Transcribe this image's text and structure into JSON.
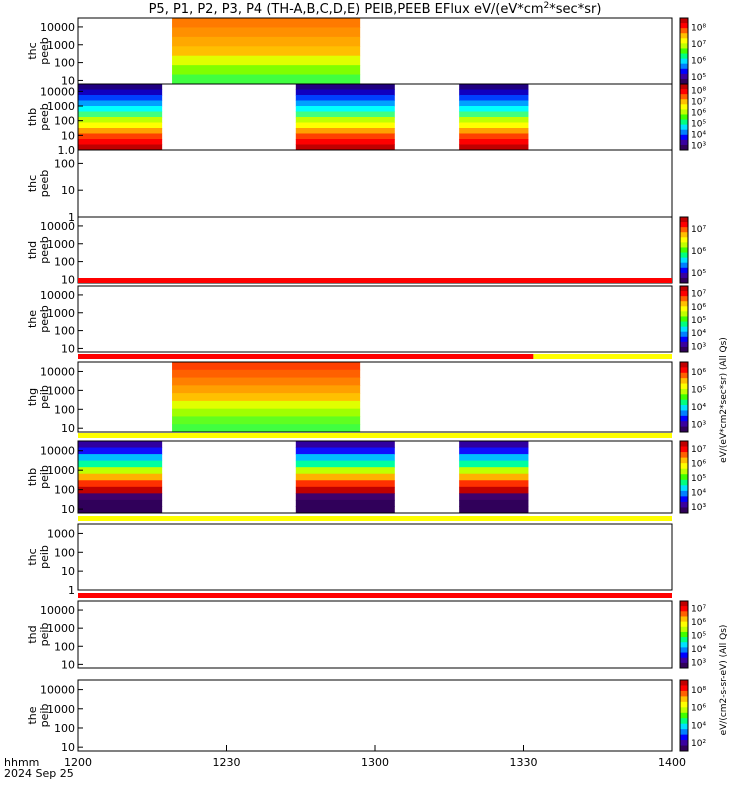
{
  "title": "P5, P1, P2, P3, P4 (TH-A,B,C,D,E) PEIB,PEEB EFlux eV/(eV*cm",
  "title_sup": "2",
  "title_tail": "*sec*sr)",
  "time_axis": {
    "label_line1": "hhmm",
    "label_line2": "2024 Sep 25",
    "ticks": [
      "1200",
      "1230",
      "1300",
      "1330",
      "1400"
    ],
    "tick_minutes": [
      0,
      30,
      60,
      90,
      120
    ]
  },
  "colorbar_units_electron": "eV/(eV*cm2*sec*sr) (All Qs)",
  "colorbar_units_ion": "eV/(cm2-s-sr-eV) (All Qs)",
  "chart_data": {
    "type": "heatmap",
    "x_range_minutes": [
      0,
      120
    ],
    "panels": [
      {
        "ylabel": [
          "thc",
          "peeb"
        ],
        "yticks": [
          "10",
          "100",
          "1000",
          "10000"
        ],
        "ylog": [
          0.8,
          4.5
        ],
        "intervals": [
          [
            19,
            57
          ]
        ],
        "colormap": "orange",
        "cbar": [
          "10⁵",
          "10⁶",
          "10⁷",
          "10⁸"
        ],
        "cbar_exp": [
          "5",
          "6",
          "7",
          "8"
        ],
        "flags": []
      },
      {
        "ylabel": [
          "thb",
          "peeb"
        ],
        "yticks": [
          "1.0",
          "10",
          "100",
          "1000",
          "10000"
        ],
        "ylog": [
          0,
          4.5
        ],
        "intervals": [
          [
            0,
            17
          ],
          [
            44,
            64
          ],
          [
            77,
            91
          ]
        ],
        "colormap": "electron",
        "cbar": [
          "10³",
          "10⁴",
          "10⁵",
          "10⁶",
          "10⁷",
          "10⁸"
        ],
        "cbar_exp": [
          "3",
          "4",
          "5",
          "6",
          "7",
          "8"
        ],
        "flags": []
      },
      {
        "ylabel": [
          "thc",
          "peeb"
        ],
        "yticks": [
          "1",
          "10",
          "100"
        ],
        "ylog": [
          0,
          2.5
        ],
        "intervals": [],
        "colormap": "none",
        "cbar": [],
        "cbar_exp": [],
        "flags": []
      },
      {
        "ylabel": [
          "thd",
          "peeb"
        ],
        "yticks": [
          "10",
          "100",
          "1000",
          "10000"
        ],
        "ylog": [
          0.8,
          4.5
        ],
        "intervals": [],
        "colormap": "none",
        "cbar": [
          "10⁵",
          "10⁶",
          "10⁷"
        ],
        "cbar_exp": [
          "5",
          "6",
          "7"
        ],
        "flags": []
      },
      {
        "ylabel": [
          "the",
          "peeb"
        ],
        "yticks": [
          "10",
          "100",
          "1000",
          "10000"
        ],
        "ylog": [
          0.8,
          4.5
        ],
        "intervals": [],
        "colormap": "none",
        "cbar": [
          "10³",
          "10⁴",
          "10⁵",
          "10⁶",
          "10⁷"
        ],
        "cbar_exp": [
          "3",
          "4",
          "5",
          "6",
          "7"
        ],
        "flags": [
          {
            "color": "#ff0000",
            "from": 0,
            "to": 120
          }
        ]
      },
      {
        "ylabel": [
          "thg",
          "peib"
        ],
        "yticks": [
          "10",
          "100",
          "1000",
          "10000"
        ],
        "ylog": [
          0.8,
          4.5
        ],
        "intervals": [
          [
            19,
            57
          ]
        ],
        "colormap": "ion_orange",
        "cbar": [
          "10³",
          "10⁴",
          "10⁵",
          "10⁶"
        ],
        "cbar_exp": [
          "3",
          "4",
          "5",
          "6"
        ],
        "flags": [
          {
            "color": "#ff0000",
            "from": 0,
            "to": 92
          },
          {
            "color": "#ffff00",
            "from": 92,
            "to": 120
          }
        ]
      },
      {
        "ylabel": [
          "thb",
          "peib"
        ],
        "yticks": [
          "10",
          "100",
          "1000",
          "10000"
        ],
        "ylog": [
          0.8,
          4.5
        ],
        "intervals": [
          [
            0,
            17
          ],
          [
            44,
            64
          ],
          [
            77,
            91
          ]
        ],
        "colormap": "ion",
        "cbar": [
          "10³",
          "10⁴",
          "10⁵",
          "10⁶",
          "10⁷"
        ],
        "cbar_exp": [
          "3",
          "4",
          "5",
          "6",
          "7"
        ],
        "flags": [
          {
            "color": "#ffff00",
            "from": 0,
            "to": 120
          }
        ]
      },
      {
        "ylabel": [
          "thc",
          "peib"
        ],
        "yticks": [
          "1",
          "10",
          "100",
          "1000"
        ],
        "ylog": [
          0,
          3.5
        ],
        "intervals": [],
        "colormap": "none",
        "cbar": [],
        "cbar_exp": [],
        "flags": [
          {
            "color": "#ffff00",
            "from": 0,
            "to": 120
          }
        ]
      },
      {
        "ylabel": [
          "thd",
          "peib"
        ],
        "yticks": [
          "10",
          "100",
          "1000",
          "10000"
        ],
        "ylog": [
          0.8,
          4.5
        ],
        "intervals": [],
        "colormap": "none",
        "cbar": [
          "10³",
          "10⁴",
          "10⁵",
          "10⁶",
          "10⁷"
        ],
        "cbar_exp": [
          "3",
          "4",
          "5",
          "6",
          "7"
        ],
        "flags": [
          {
            "color": "#ff0000",
            "from": 0,
            "to": 120
          }
        ]
      },
      {
        "ylabel": [
          "the",
          "peib"
        ],
        "yticks": [
          "10",
          "100",
          "1000",
          "10000"
        ],
        "ylog": [
          0.8,
          4.5
        ],
        "intervals": [],
        "colormap": "none",
        "cbar": [
          "10²",
          "10⁴",
          "10⁶",
          "10⁸"
        ],
        "cbar_exp": [
          "2",
          "4",
          "6",
          "8"
        ],
        "flags": []
      }
    ]
  }
}
